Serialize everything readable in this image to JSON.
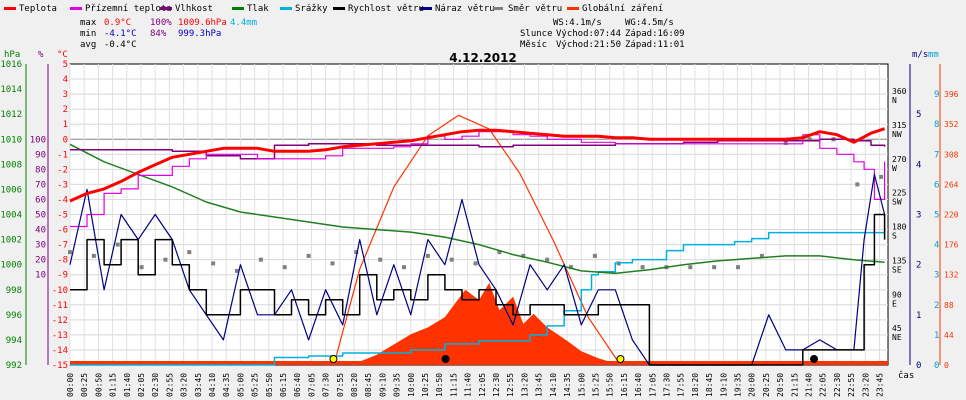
{
  "chart_data": {
    "type": "line",
    "title": "4.12.2012",
    "x_axis_label": "čas",
    "x_tick_labels": [
      "00:00",
      "00:25",
      "00:50",
      "01:15",
      "01:40",
      "02:05",
      "02:30",
      "02:55",
      "03:20",
      "03:45",
      "04:10",
      "04:35",
      "05:00",
      "05:25",
      "05:50",
      "06:15",
      "06:40",
      "07:05",
      "07:30",
      "07:55",
      "08:20",
      "08:45",
      "09:10",
      "09:35",
      "10:00",
      "10:25",
      "10:50",
      "11:15",
      "11:40",
      "12:05",
      "12:30",
      "12:55",
      "13:20",
      "13:45",
      "14:10",
      "14:35",
      "15:00",
      "15:25",
      "15:50",
      "16:15",
      "16:40",
      "17:05",
      "17:30",
      "17:55",
      "18:20",
      "18:45",
      "19:10",
      "19:35",
      "20:00",
      "20:25",
      "20:50",
      "21:15",
      "21:40",
      "22:05",
      "22:30",
      "22:55",
      "23:20",
      "23:45"
    ],
    "axes": {
      "pressure": {
        "unit": "hPa",
        "ticks": [
          992,
          994,
          996,
          998,
          1000,
          1002,
          1004,
          1006,
          1008,
          1010,
          1012,
          1014,
          1016
        ],
        "color": "#008000"
      },
      "humidity": {
        "unit": "%",
        "ticks": [
          10,
          20,
          30,
          40,
          50,
          60,
          70,
          80,
          90,
          100
        ],
        "color": "#800080"
      },
      "temperature": {
        "unit": "°C",
        "ticks": [
          -15,
          -14,
          -13,
          -12,
          -11,
          -10,
          -9,
          -8,
          -7,
          -6,
          -5,
          -4,
          -3,
          -2,
          -1,
          0,
          1,
          2,
          3,
          4,
          5
        ],
        "color": "#ff0000"
      },
      "wind_speed": {
        "unit": "m/s",
        "ticks": [
          0,
          1,
          2,
          3,
          4,
          5
        ],
        "color": "#000080"
      },
      "precipitation": {
        "unit": "mm",
        "ticks": [
          0,
          1,
          2,
          3,
          4,
          5,
          6,
          7,
          8,
          9
        ],
        "color": "#00a0d0"
      },
      "wind_direction": {
        "ticks": [
          {
            "value": "360",
            "dir": "N"
          },
          {
            "value": "315",
            "dir": "NW"
          },
          {
            "value": "270",
            "dir": "W"
          },
          {
            "value": "225",
            "dir": "SW"
          },
          {
            "value": "180",
            "dir": "S"
          },
          {
            "value": "135",
            "dir": "SE"
          },
          {
            "value": "90",
            "dir": "E"
          },
          {
            "value": "45",
            "dir": "NE"
          }
        ],
        "color": "#000000"
      },
      "solar_radiation": {
        "ticks": [
          0,
          44,
          88,
          132,
          176,
          220,
          264,
          308,
          352,
          396
        ],
        "color": "#ff3300"
      }
    },
    "legend": [
      {
        "name": "Teplota",
        "color": "#ff0000",
        "style": "line"
      },
      {
        "name": "Přízemní teplota",
        "color": "#e000e0",
        "style": "line"
      },
      {
        "name": "Vlhkost",
        "color": "#800080",
        "style": "line"
      },
      {
        "name": "Tlak",
        "color": "#008000",
        "style": "line"
      },
      {
        "name": "Srážky",
        "color": "#00b0e0",
        "style": "line"
      },
      {
        "name": "Rychlost větru",
        "color": "#000000",
        "style": "line"
      },
      {
        "name": "Náraz větru",
        "color": "#000080",
        "style": "line"
      },
      {
        "name": "Směr větru",
        "color": "#808080",
        "style": "dots"
      },
      {
        "name": "Globální záření",
        "color": "#ff3300",
        "style": "line"
      }
    ],
    "stats": {
      "max": {
        "label": "max",
        "temp": "0.9°C",
        "hum": "100%",
        "press": "1009.6hPa",
        "rain": "4.4mm"
      },
      "min": {
        "label": "min",
        "temp": "-4.1°C",
        "hum": "84%",
        "press": "999.3hPa"
      },
      "avg": {
        "label": "avg",
        "temp": "-0.4°C"
      },
      "ws": "WS:4.1m/s",
      "wg": "WG:4.5m/s",
      "sun": {
        "label": "Slunce",
        "rise": "Východ:07:44",
        "set": "Západ:16:09"
      },
      "moon": {
        "label": "Měsíc",
        "rise": "Východ:21:50",
        "set": "Západ:11:01"
      }
    },
    "series": {
      "temperature": {
        "x_hours": [
          0,
          0.5,
          1,
          1.5,
          2,
          2.5,
          3,
          3.5,
          4,
          4.5,
          5,
          5.5,
          6,
          6.5,
          7,
          7.5,
          8,
          8.5,
          9,
          9.5,
          10,
          10.5,
          11,
          11.5,
          12,
          12.5,
          13,
          13.5,
          14,
          14.5,
          15,
          15.5,
          16,
          16.5,
          17,
          17.5,
          18,
          18.5,
          19,
          19.5,
          20,
          20.5,
          21,
          21.5,
          22,
          22.5,
          23,
          23.5,
          23.9
        ],
        "values": [
          -4.1,
          -3.6,
          -3.3,
          -2.8,
          -2.2,
          -1.7,
          -1.2,
          -1.0,
          -0.8,
          -0.6,
          -0.6,
          -0.6,
          -0.8,
          -0.8,
          -0.8,
          -0.7,
          -0.5,
          -0.4,
          -0.3,
          -0.2,
          -0.1,
          0.1,
          0.3,
          0.5,
          0.6,
          0.6,
          0.5,
          0.4,
          0.3,
          0.2,
          0.2,
          0.2,
          0.1,
          0.1,
          0.0,
          0.0,
          0.0,
          0.0,
          0.0,
          0.0,
          0.0,
          0.0,
          0.0,
          0.1,
          0.5,
          0.3,
          -0.2,
          0.4,
          0.7
        ]
      },
      "ground_temperature": {
        "x_hours": [
          0,
          0.5,
          1,
          1.5,
          2,
          2.5,
          3,
          3.5,
          4,
          4.5,
          5,
          5.5,
          6,
          6.5,
          7,
          7.5,
          8,
          8.5,
          9,
          9.5,
          10,
          10.5,
          11,
          11.5,
          12,
          12.5,
          13,
          13.5,
          14,
          14.5,
          15,
          15.5,
          16,
          16.5,
          17,
          17.5,
          18,
          18.5,
          19,
          19.5,
          20,
          20.5,
          21,
          21.5,
          22,
          22.5,
          23,
          23.3,
          23.6,
          23.9
        ],
        "values": [
          -5.8,
          -5.0,
          -3.6,
          -3.3,
          -2.4,
          -2.4,
          -1.8,
          -1.3,
          -1.0,
          -1.0,
          -1.0,
          -1.3,
          -1.3,
          -1.3,
          -1.3,
          -1.1,
          -0.6,
          -0.6,
          -0.6,
          -0.5,
          -0.3,
          0.2,
          0.0,
          0.2,
          0.5,
          0.5,
          0.3,
          0.2,
          0.0,
          0.0,
          -0.2,
          -0.2,
          -0.3,
          -0.3,
          -0.3,
          -0.3,
          -0.3,
          -0.3,
          -0.3,
          -0.3,
          -0.3,
          -0.3,
          -0.3,
          0.3,
          -0.6,
          -1.0,
          -1.5,
          -2.0,
          -4.0,
          -1.5
        ]
      },
      "humidity": {
        "x_hours": [
          0,
          1,
          2,
          3,
          4,
          5,
          6,
          7,
          8,
          9,
          10,
          11,
          12,
          13,
          14,
          15,
          16,
          17,
          18,
          19,
          20,
          21,
          22,
          23,
          23.5,
          23.9
        ],
        "values": [
          93,
          93,
          93,
          92,
          89,
          87,
          96,
          97,
          97,
          96,
          96,
          96,
          95,
          96,
          96,
          96,
          97,
          97,
          98,
          99,
          99,
          99,
          100,
          99,
          96,
          95
        ]
      },
      "pressure": {
        "x_hours": [
          0,
          1,
          2,
          3,
          4,
          5,
          6,
          7,
          8,
          9,
          10,
          11,
          12,
          13,
          14,
          15,
          16,
          17,
          18,
          19,
          20,
          21,
          22,
          23,
          23.9
        ],
        "values": [
          1009.6,
          1008.2,
          1007.2,
          1006.2,
          1005.0,
          1004.2,
          1003.8,
          1003.4,
          1003.0,
          1002.8,
          1002.6,
          1002.2,
          1001.6,
          1000.8,
          1000.2,
          999.5,
          999.3,
          999.6,
          1000.0,
          1000.3,
          1000.5,
          1000.7,
          1000.7,
          1000.4,
          1000.2
        ]
      },
      "precipitation": {
        "x_hours": [
          0,
          5,
          6,
          7,
          8,
          9,
          10,
          11,
          12,
          13,
          13.5,
          14,
          14.5,
          15,
          15.3,
          15.5,
          16,
          16.5,
          17,
          17.5,
          18,
          18.5,
          19,
          19.5,
          20,
          20.5,
          21,
          21.5,
          22,
          23,
          23.9
        ],
        "values": [
          0,
          0,
          0.25,
          0.3,
          0.4,
          0.4,
          0.5,
          0.7,
          0.8,
          0.8,
          1.0,
          1.3,
          1.8,
          2.5,
          3.0,
          3.1,
          3.4,
          3.5,
          3.5,
          3.8,
          4.0,
          4.0,
          4.0,
          4.1,
          4.2,
          4.4,
          4.4,
          4.4,
          4.4,
          4.4,
          4.4
        ]
      },
      "wind_speed_mean": {
        "x_hours": [
          0,
          0.5,
          1,
          1.5,
          2,
          2.5,
          3,
          3.5,
          4,
          4.5,
          5,
          5.5,
          6,
          6.5,
          7,
          7.5,
          8,
          8.5,
          9,
          9.5,
          10,
          10.5,
          11,
          11.5,
          12,
          12.5,
          13,
          13.5,
          14,
          14.5,
          15,
          15.5,
          16,
          16.5,
          17,
          18,
          19,
          20,
          21,
          21.4,
          21.5,
          22,
          22.5,
          23,
          23.3,
          23.6,
          23.9
        ],
        "values": [
          1.5,
          2.5,
          2.0,
          2.5,
          1.8,
          2.5,
          2.0,
          1.5,
          1.0,
          1.0,
          1.5,
          1.5,
          1.0,
          1.3,
          1.0,
          1.3,
          1.0,
          1.8,
          1.3,
          1.5,
          1.3,
          1.8,
          1.5,
          1.3,
          1.5,
          1.2,
          1.0,
          1.2,
          1.2,
          1.0,
          1.0,
          1.2,
          1.2,
          1.2,
          0.0,
          0.0,
          0.0,
          0.0,
          0.0,
          0.0,
          0.3,
          0.3,
          0.3,
          0.3,
          2.0,
          3.0,
          2.5
        ]
      },
      "wind_gust": {
        "x_hours": [
          0,
          0.5,
          1,
          1.5,
          2,
          2.5,
          3,
          3.5,
          4,
          4.5,
          5,
          5.5,
          6,
          6.5,
          7,
          7.5,
          8,
          8.5,
          9,
          9.5,
          10,
          10.5,
          11,
          11.5,
          12,
          12.5,
          13,
          13.5,
          14,
          14.5,
          15,
          15.5,
          16,
          16.5,
          17,
          18,
          19,
          20,
          20.5,
          21,
          21.5,
          22,
          22.5,
          23,
          23.3,
          23.6,
          23.9
        ],
        "values": [
          2.0,
          3.5,
          1.5,
          3.0,
          2.5,
          3.0,
          2.5,
          1.5,
          1.0,
          0.5,
          2.0,
          1.0,
          1.0,
          1.5,
          0.5,
          1.5,
          0.8,
          2.5,
          1.0,
          2.0,
          1.0,
          2.5,
          2.0,
          3.3,
          2.0,
          1.5,
          0.8,
          2.0,
          1.5,
          2.0,
          0.8,
          1.5,
          1.5,
          0.5,
          0.0,
          0.0,
          0.0,
          0.0,
          1.0,
          0.3,
          0.3,
          0.5,
          0.3,
          0.3,
          2.5,
          3.8,
          3.0
        ]
      },
      "wind_direction": {
        "x_hours": [
          0,
          0.7,
          1.4,
          2.1,
          2.8,
          3.5,
          4.2,
          4.9,
          5.6,
          6.3,
          7.0,
          7.7,
          8.4,
          9.1,
          9.8,
          10.5,
          11.2,
          11.9,
          12.6,
          13.3,
          14.0,
          14.7,
          15.4,
          16.1,
          16.8,
          17.5,
          18.2,
          18.9,
          19.6,
          20.3,
          21.0,
          21.7,
          22.4,
          23.1,
          23.8
        ],
        "values": [
          150,
          145,
          160,
          130,
          140,
          150,
          135,
          125,
          140,
          130,
          145,
          135,
          150,
          140,
          130,
          145,
          140,
          135,
          150,
          145,
          140,
          130,
          145,
          135,
          130,
          130,
          130,
          130,
          130,
          145,
          295,
          300,
          300,
          240,
          250
        ]
      },
      "solar_radiation": {
        "x_hours": [
          0,
          7.74,
          8.5,
          9,
          9.5,
          10,
          10.5,
          11,
          11.3,
          11.6,
          12,
          12.3,
          12.6,
          13,
          13.3,
          13.6,
          14,
          14.3,
          14.6,
          15,
          15.5,
          16.15,
          23.9
        ],
        "values": [
          0,
          0,
          5,
          15,
          30,
          45,
          55,
          70,
          90,
          110,
          95,
          120,
          80,
          100,
          60,
          75,
          55,
          45,
          35,
          20,
          10,
          0,
          0
        ]
      },
      "theoretical_radiation": {
        "x_hours": [
          7.74,
          8.5,
          9.5,
          10.5,
          11.4,
          12.3,
          13.2,
          14.2,
          15.2,
          16.15
        ],
        "values": [
          0,
          140,
          260,
          335,
          365,
          345,
          280,
          180,
          70,
          0
        ]
      }
    }
  }
}
